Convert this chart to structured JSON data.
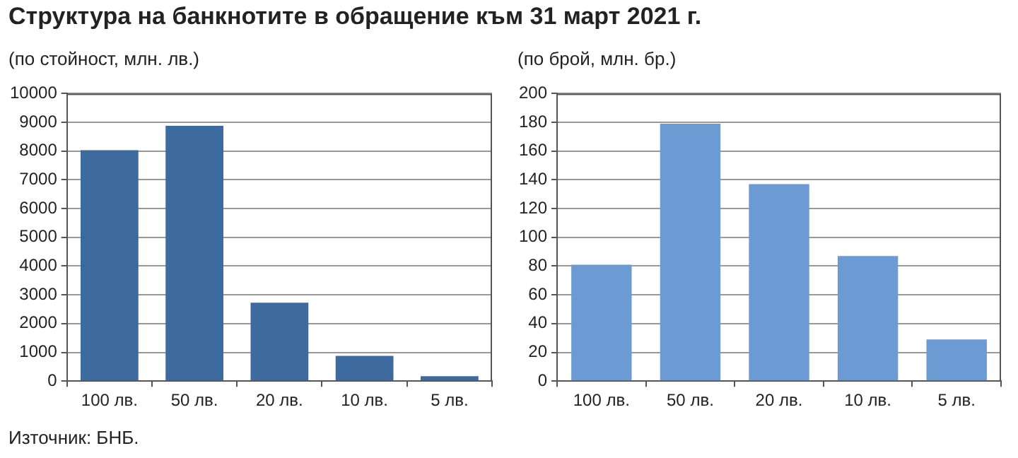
{
  "chart_data": [
    {
      "type": "bar",
      "title": "Структура на банкнотите в обращение към 31 март 2021 г.",
      "subtitle": "(по стойност, млн. лв.)",
      "annotations": [
        "Източник: БНБ."
      ],
      "categories": [
        "100 лв.",
        "50 лв.",
        "20 лв.",
        "10 лв.",
        "5 лв."
      ],
      "series": [
        {
          "color": "#3d6ba0",
          "values": [
            8030,
            8880,
            2730,
            880,
            170
          ]
        }
      ],
      "ylim": [
        0,
        10000
      ],
      "yticks": [
        0,
        1000,
        2000,
        3000,
        4000,
        5000,
        6000,
        7000,
        8000,
        9000,
        10000
      ],
      "grid": "y",
      "legend": false
    },
    {
      "type": "bar",
      "subtitle": "(по брой, млн. бр.)",
      "categories": [
        "100 лв.",
        "50 лв.",
        "20 лв.",
        "10 лв.",
        "5 лв."
      ],
      "series": [
        {
          "color": "#6b9bd2",
          "values": [
            81,
            179,
            137,
            87,
            29
          ]
        }
      ],
      "ylim": [
        0,
        200
      ],
      "yticks": [
        0,
        20,
        40,
        60,
        80,
        100,
        120,
        140,
        160,
        180,
        200
      ],
      "grid": "y",
      "legend": false
    }
  ]
}
